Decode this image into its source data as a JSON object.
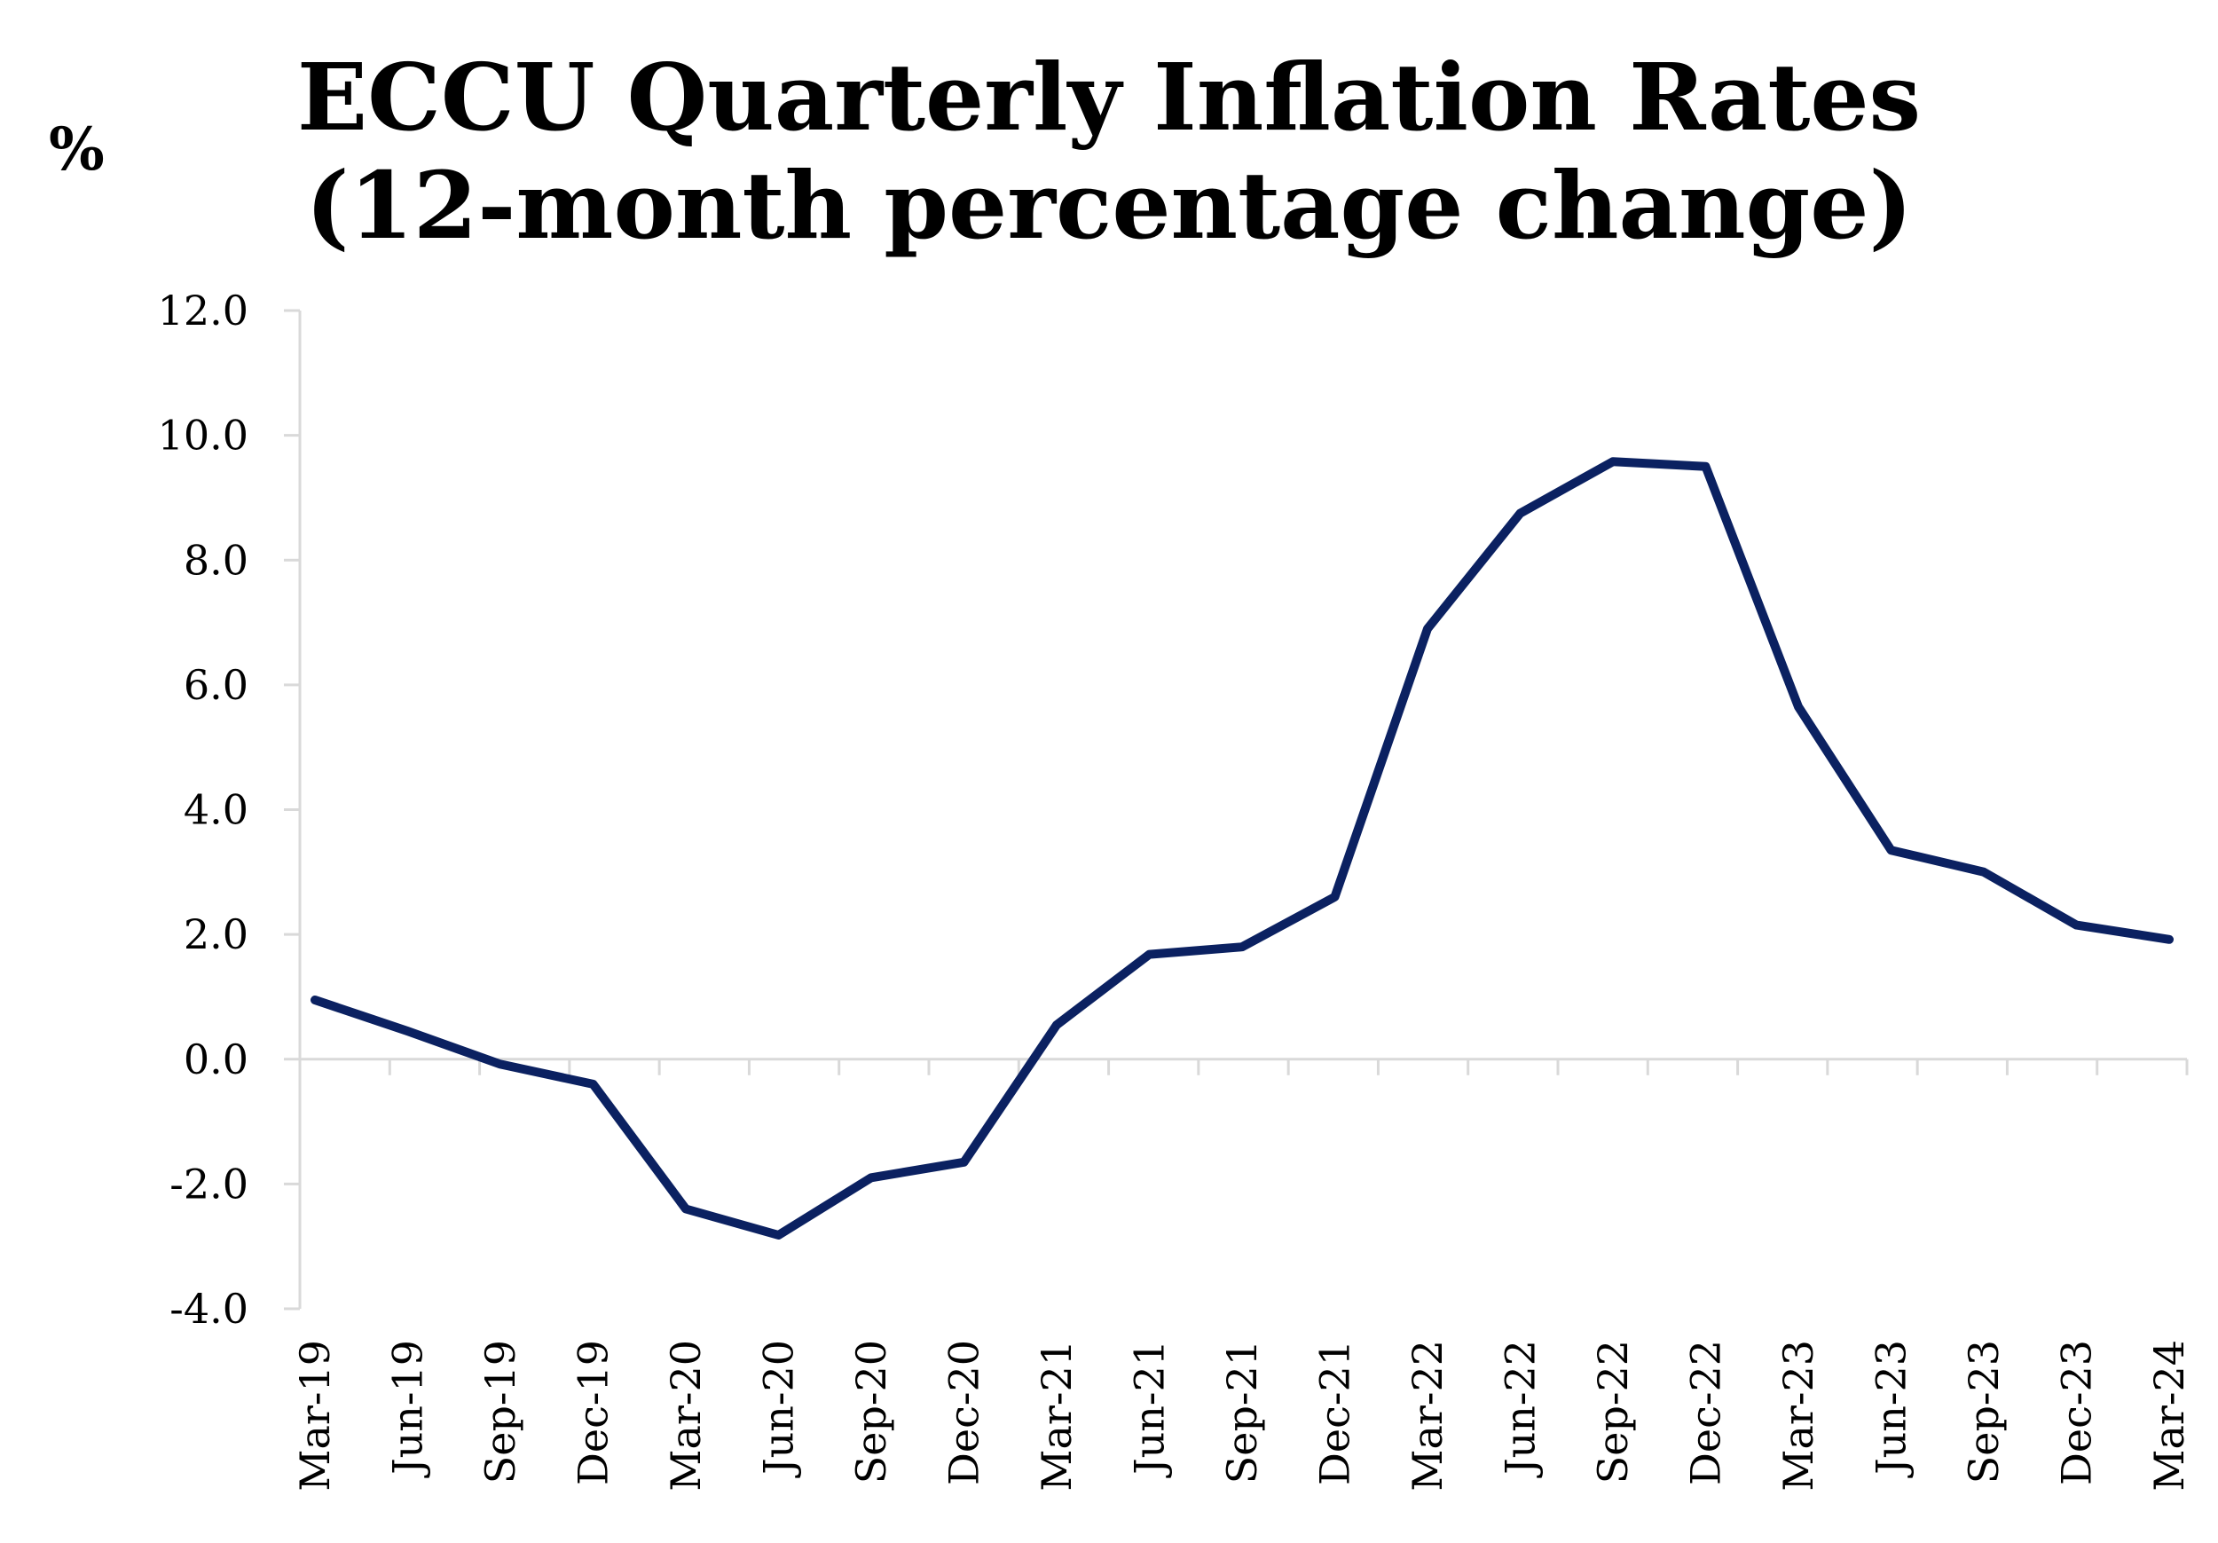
{
  "chart_data": {
    "type": "line",
    "title_line1": "ECCU Quarterly Inflation Rates",
    "title_line2": "(12-month percentage change)",
    "unit_label": "%",
    "xlabel": "",
    "ylabel": "",
    "categories": [
      "Mar-19",
      "Jun-19",
      "Sep-19",
      "Dec-19",
      "Mar-20",
      "Jun-20",
      "Sep-20",
      "Dec-20",
      "Mar-21",
      "Jun-21",
      "Sep-21",
      "Dec-21",
      "Mar-22",
      "Jun-22",
      "Sep-22",
      "Dec-22",
      "Mar-23",
      "Jun-23",
      "Sep-23",
      "Dec-23",
      "Mar-24"
    ],
    "series": [
      {
        "values": [
          0.95,
          0.45,
          -0.08,
          -0.4,
          -2.4,
          -2.82,
          -1.9,
          -1.65,
          0.55,
          1.68,
          1.8,
          2.6,
          6.9,
          8.75,
          9.58,
          9.5,
          5.65,
          3.35,
          3.0,
          2.15,
          1.92
        ],
        "color": "#0b2161"
      }
    ],
    "ylim": [
      -4.0,
      12.0
    ],
    "yticks": [
      12.0,
      10.0,
      8.0,
      6.0,
      4.0,
      2.0,
      0.0,
      -2.0,
      -4.0
    ],
    "ytick_labels": [
      "12.0",
      "10.0",
      "8.0",
      "6.0",
      "4.0",
      "2.0",
      "0.0",
      "-2.0",
      "-4.0"
    ],
    "grid": false,
    "legend": "none",
    "axis_color": "#d9d9d9"
  }
}
